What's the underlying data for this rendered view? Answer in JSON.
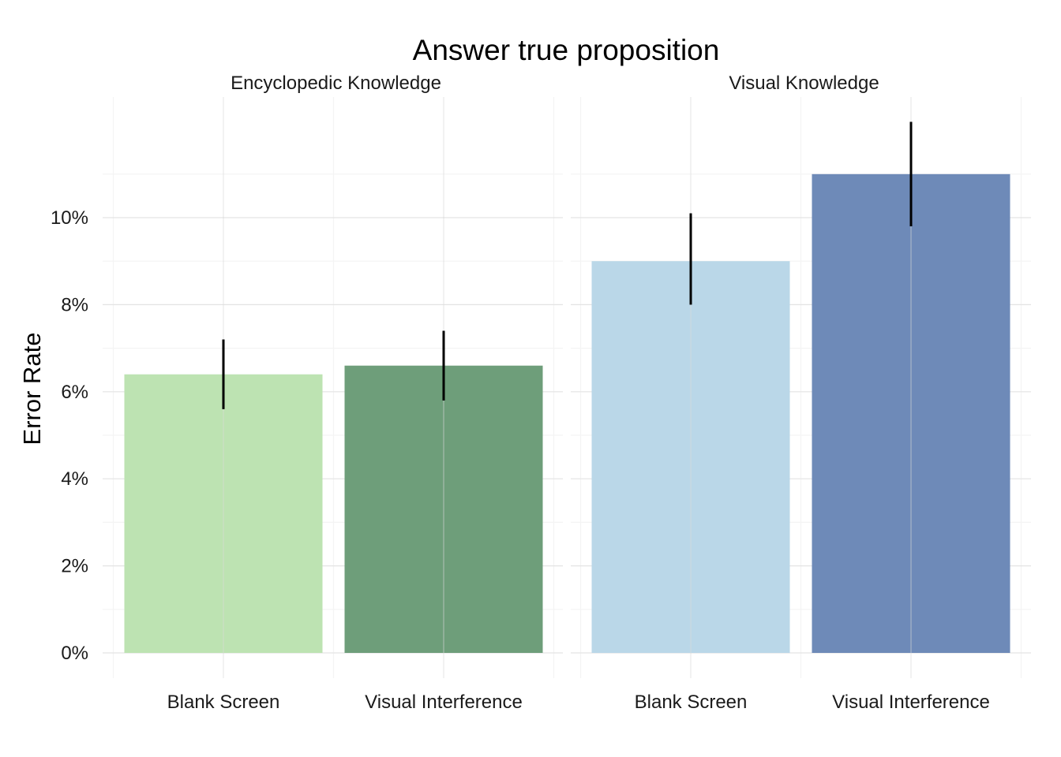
{
  "chart_data": {
    "type": "bar",
    "title": "Answer true proposition",
    "xlabel": "",
    "ylabel": "Error Rate",
    "ylim": [
      -0.005,
      0.125
    ],
    "yticks": [
      0,
      0.02,
      0.04,
      0.06,
      0.08,
      0.1
    ],
    "ytick_labels": [
      "0%",
      "2%",
      "4%",
      "6%",
      "8%",
      "10%"
    ],
    "grid": true,
    "legend": "none",
    "panels": [
      {
        "name": "Encyclopedic Knowledge",
        "categories": [
          "Blank Screen",
          "Visual Interference"
        ],
        "values": [
          0.064,
          0.066
        ],
        "error_low": [
          0.056,
          0.058
        ],
        "error_high": [
          0.072,
          0.074
        ],
        "colors": [
          "#bde3b2",
          "#6e9e7a"
        ]
      },
      {
        "name": "Visual Knowledge",
        "categories": [
          "Blank Screen",
          "Visual Interference"
        ],
        "values": [
          0.09,
          0.11
        ],
        "error_low": [
          0.08,
          0.098
        ],
        "error_high": [
          0.101,
          0.122
        ],
        "colors": [
          "#bad7e8",
          "#6e8ab8"
        ]
      }
    ]
  }
}
